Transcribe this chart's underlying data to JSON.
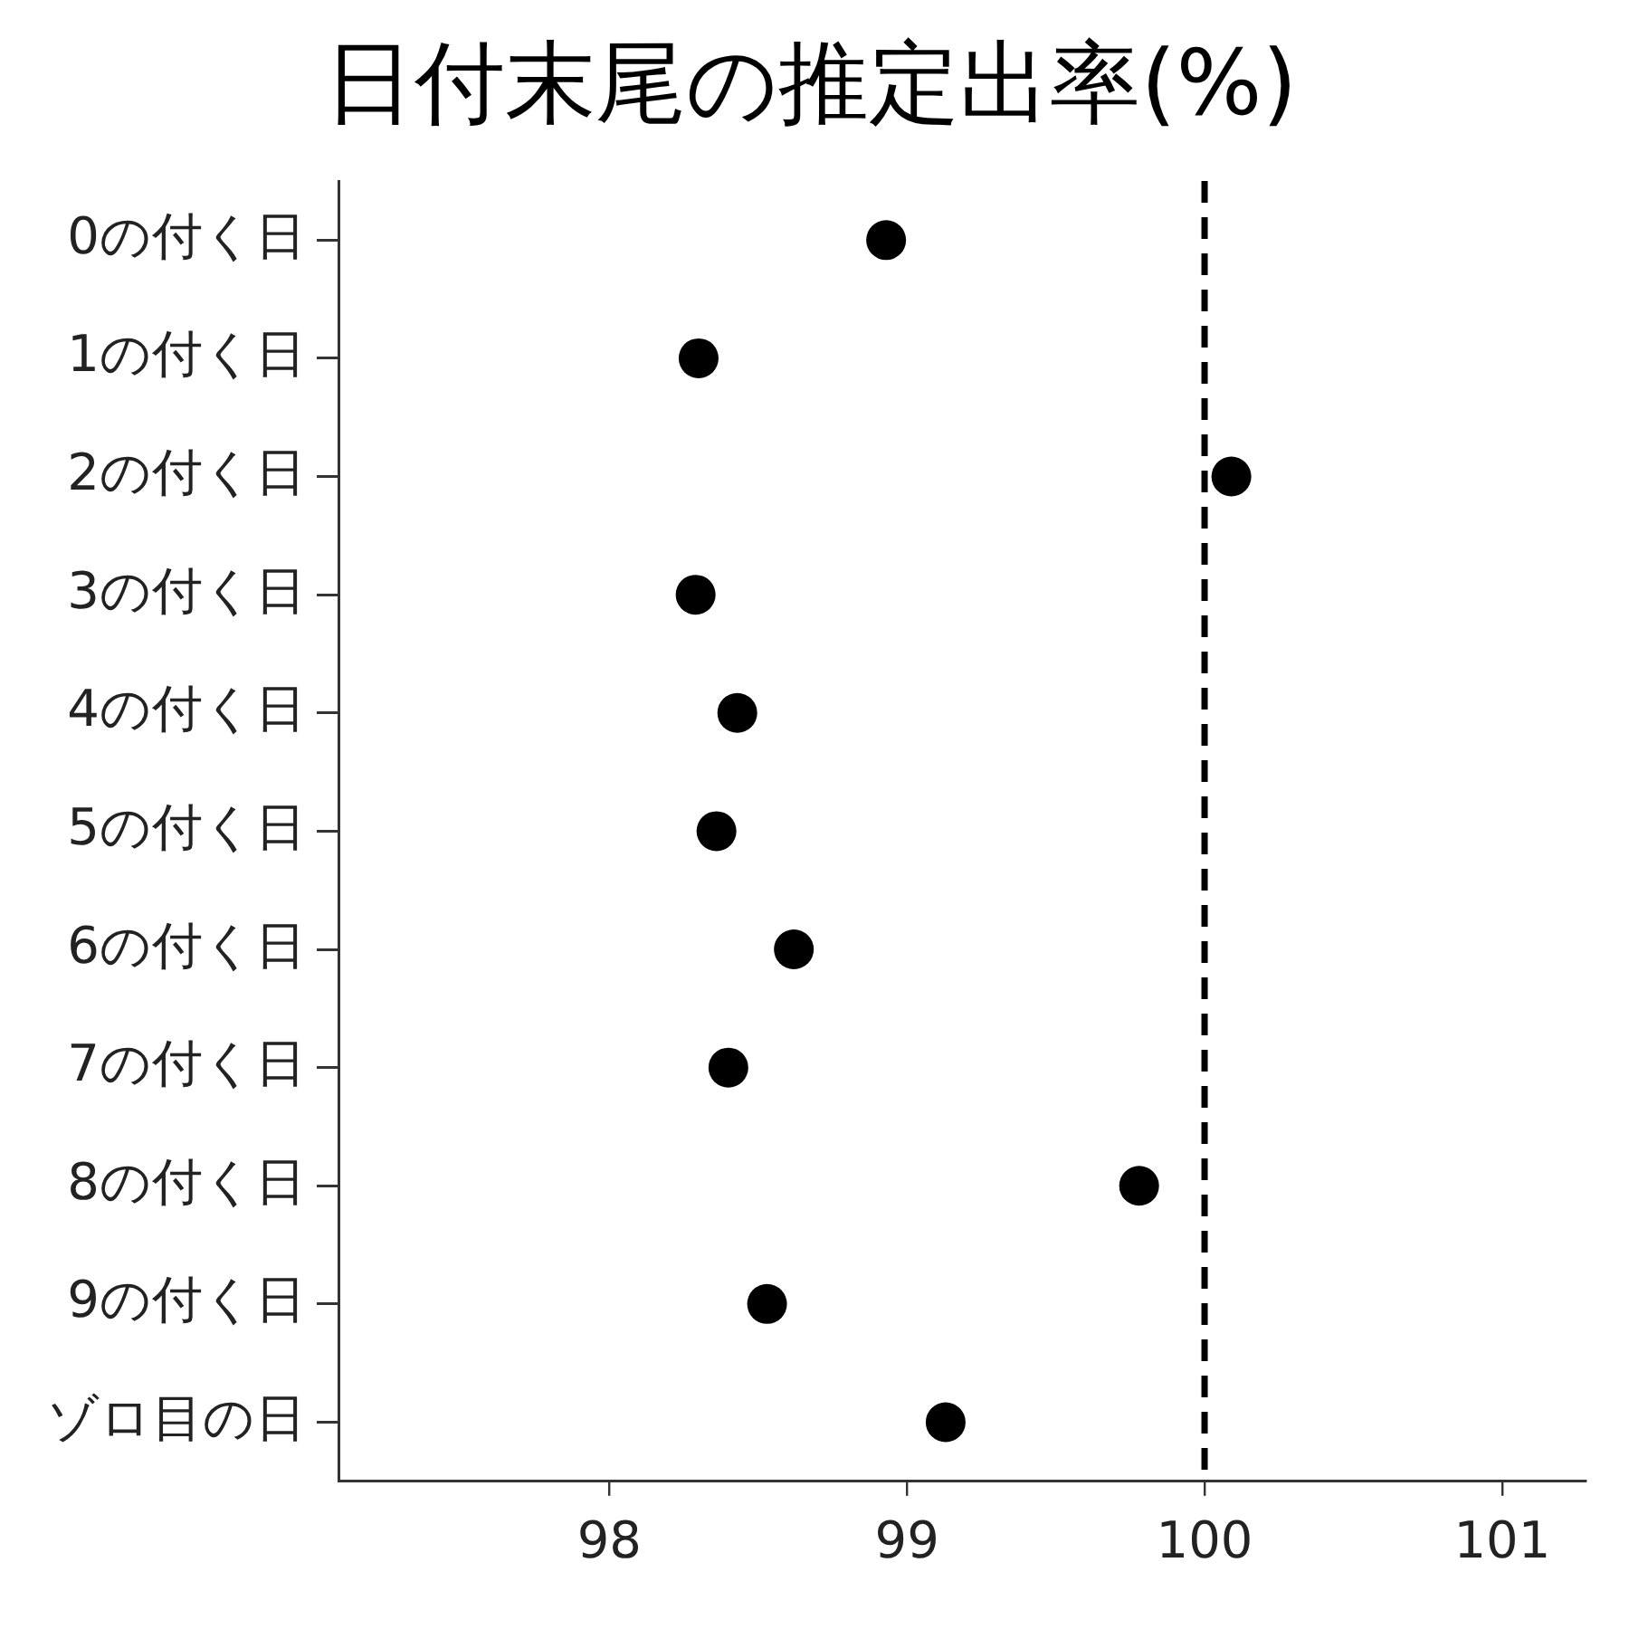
{
  "chart_data": {
    "type": "scatter",
    "orientation": "horizontal",
    "title": "日付末尾の推定出率(%)",
    "categories": [
      "0の付く日",
      "1の付く日",
      "2の付く日",
      "3の付く日",
      "4の付く日",
      "5の付く日",
      "6の付く日",
      "7の付く日",
      "8の付く日",
      "9の付く日",
      "ゾロ目の日"
    ],
    "values": [
      98.93,
      98.3,
      100.09,
      98.29,
      98.43,
      98.36,
      98.62,
      98.4,
      99.78,
      98.53,
      99.13
    ],
    "color": "#000000",
    "marker": "circle",
    "xlim": [
      97.09,
      101.28
    ],
    "xticks": [
      98,
      99,
      100,
      101
    ],
    "ref_lines": [
      {
        "axis": "x",
        "value": 100,
        "color": "#000000",
        "line_style": "dashed"
      }
    ],
    "grid": false,
    "legend": false
  }
}
